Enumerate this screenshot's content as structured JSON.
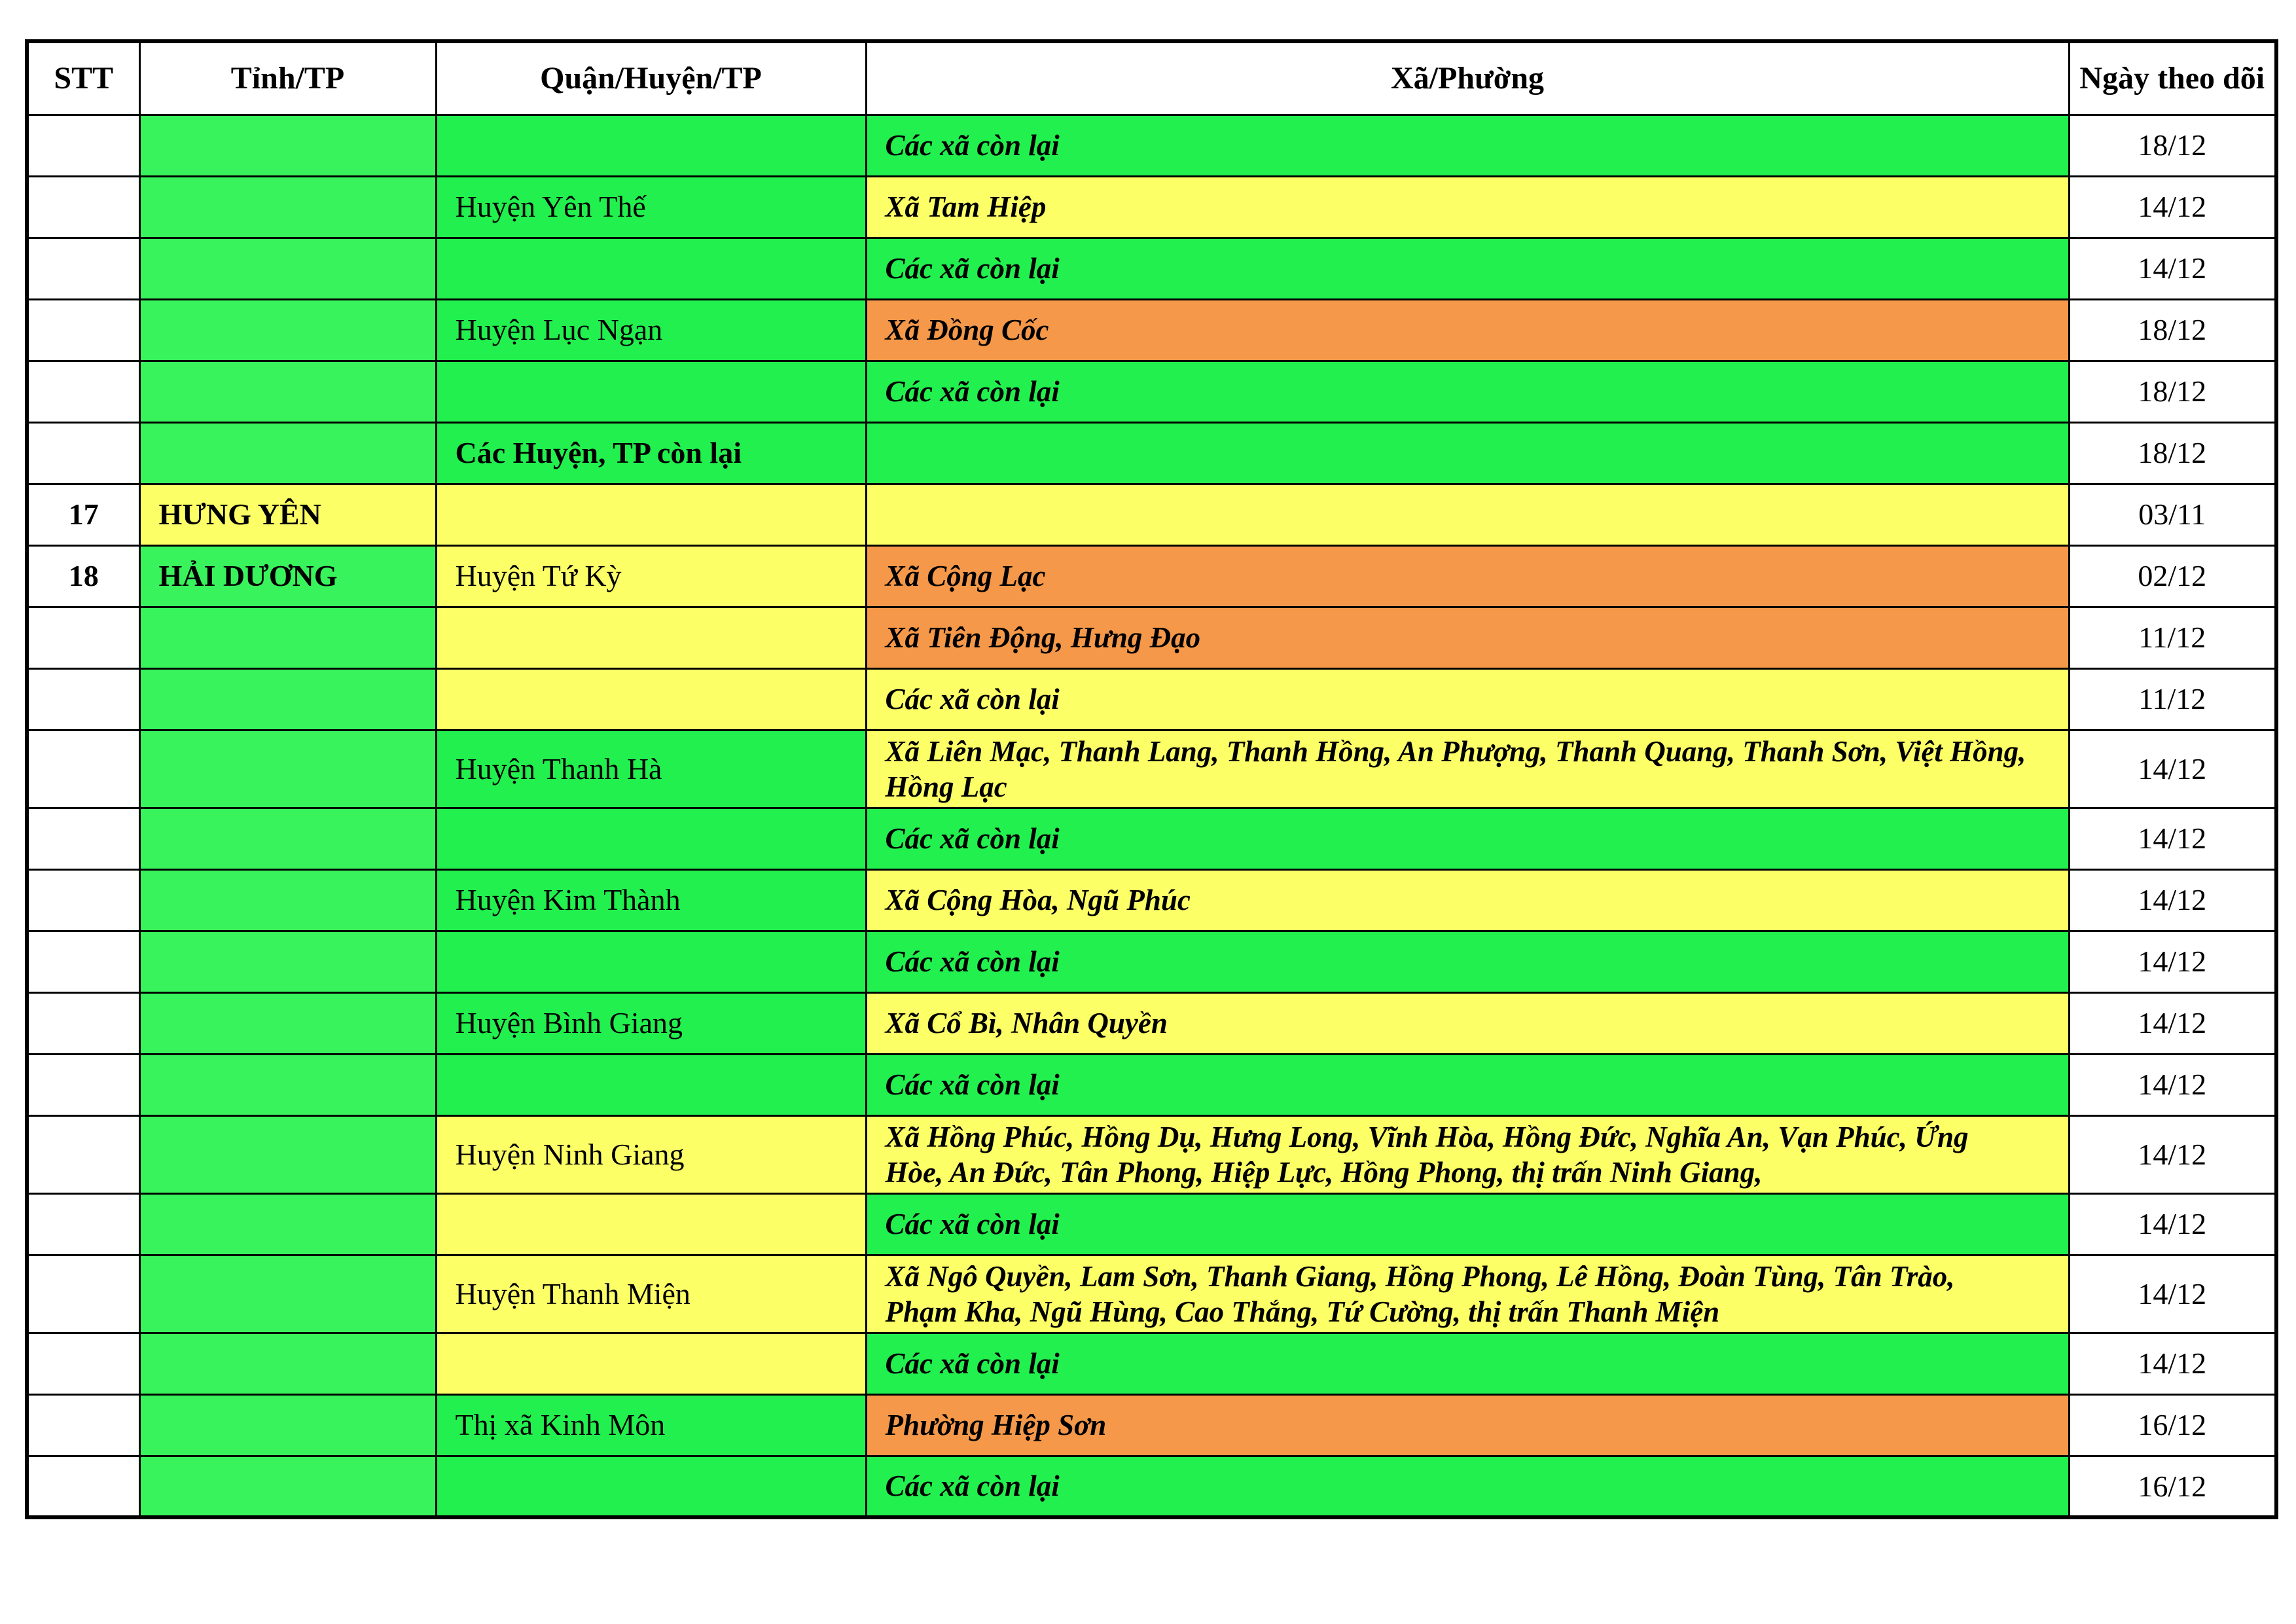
{
  "table": {
    "header": {
      "stt": "STT",
      "tinh": "Tỉnh/TP",
      "quan": "Quận/Huyện/TP",
      "xa": "Xã/Phường",
      "ngay": "Ngày theo dõi"
    },
    "colors": {
      "province_green": "#39F35C",
      "green": "#22F04E",
      "yellow": "#FDFF66",
      "orange": "#F59849",
      "white": "#FFFFFF"
    },
    "rows": [
      {
        "stt": "",
        "tinh": "",
        "tinh_bg": "province_green",
        "quan": "",
        "quan_bg": "green",
        "quan_bold": false,
        "xa": "Các xã còn lại",
        "xa_bg": "green",
        "ngay": "18/12",
        "tall": false
      },
      {
        "stt": "",
        "tinh": "",
        "tinh_bg": "province_green",
        "quan": "Huyện Yên Thế",
        "quan_bg": "green",
        "quan_bold": false,
        "xa": "Xã Tam Hiệp",
        "xa_bg": "yellow",
        "ngay": "14/12",
        "tall": false
      },
      {
        "stt": "",
        "tinh": "",
        "tinh_bg": "province_green",
        "quan": "",
        "quan_bg": "green",
        "quan_bold": false,
        "xa": "Các xã còn lại",
        "xa_bg": "green",
        "ngay": "14/12",
        "tall": false
      },
      {
        "stt": "",
        "tinh": "",
        "tinh_bg": "province_green",
        "quan": "Huyện Lục Ngạn",
        "quan_bg": "green",
        "quan_bold": false,
        "xa": "Xã Đồng Cốc",
        "xa_bg": "orange",
        "ngay": "18/12",
        "tall": false
      },
      {
        "stt": "",
        "tinh": "",
        "tinh_bg": "province_green",
        "quan": "",
        "quan_bg": "green",
        "quan_bold": false,
        "xa": "Các xã còn lại",
        "xa_bg": "green",
        "ngay": "18/12",
        "tall": false
      },
      {
        "stt": "",
        "tinh": "",
        "tinh_bg": "province_green",
        "quan": "Các Huyện, TP còn lại",
        "quan_bg": "green",
        "quan_bold": true,
        "xa": "",
        "xa_bg": "green",
        "ngay": "18/12",
        "tall": false
      },
      {
        "stt": "17",
        "tinh": "HƯNG YÊN",
        "tinh_bg": "yellow",
        "quan": "",
        "quan_bg": "yellow",
        "quan_bold": false,
        "xa": "",
        "xa_bg": "yellow",
        "ngay": "03/11",
        "tall": false
      },
      {
        "stt": "18",
        "tinh": "HẢI DƯƠNG",
        "tinh_bg": "province_green",
        "quan": "Huyện Tứ Kỳ",
        "quan_bg": "yellow",
        "quan_bold": false,
        "xa": "Xã Cộng Lạc",
        "xa_bg": "orange",
        "ngay": "02/12",
        "tall": false
      },
      {
        "stt": "",
        "tinh": "",
        "tinh_bg": "province_green",
        "quan": "",
        "quan_bg": "yellow",
        "quan_bold": false,
        "xa": "Xã Tiên Động, Hưng Đạo",
        "xa_bg": "orange",
        "ngay": "11/12",
        "tall": false
      },
      {
        "stt": "",
        "tinh": "",
        "tinh_bg": "province_green",
        "quan": "",
        "quan_bg": "yellow",
        "quan_bold": false,
        "xa": "Các xã còn lại",
        "xa_bg": "yellow",
        "ngay": "11/12",
        "tall": false
      },
      {
        "stt": "",
        "tinh": "",
        "tinh_bg": "province_green",
        "quan": "Huyện Thanh Hà",
        "quan_bg": "green",
        "quan_bold": false,
        "xa": "Xã Liên Mạc, Thanh Lang, Thanh Hồng, An Phượng, Thanh Quang, Thanh Sơn, Việt Hồng, Hồng Lạc",
        "xa_bg": "yellow",
        "ngay": "14/12",
        "tall": true
      },
      {
        "stt": "",
        "tinh": "",
        "tinh_bg": "province_green",
        "quan": "",
        "quan_bg": "green",
        "quan_bold": false,
        "xa": "Các xã còn lại",
        "xa_bg": "green",
        "ngay": "14/12",
        "tall": false
      },
      {
        "stt": "",
        "tinh": "",
        "tinh_bg": "province_green",
        "quan": "Huyện Kim Thành",
        "quan_bg": "green",
        "quan_bold": false,
        "xa": "Xã Cộng Hòa, Ngũ Phúc",
        "xa_bg": "yellow",
        "ngay": "14/12",
        "tall": false
      },
      {
        "stt": "",
        "tinh": "",
        "tinh_bg": "province_green",
        "quan": "",
        "quan_bg": "green",
        "quan_bold": false,
        "xa": "Các xã còn lại",
        "xa_bg": "green",
        "ngay": "14/12",
        "tall": false
      },
      {
        "stt": "",
        "tinh": "",
        "tinh_bg": "province_green",
        "quan": "Huyện Bình Giang",
        "quan_bg": "green",
        "quan_bold": false,
        "xa": "Xã Cổ Bì, Nhân Quyền",
        "xa_bg": "yellow",
        "ngay": "14/12",
        "tall": false
      },
      {
        "stt": "",
        "tinh": "",
        "tinh_bg": "province_green",
        "quan": "",
        "quan_bg": "green",
        "quan_bold": false,
        "xa": "Các xã còn lại",
        "xa_bg": "green",
        "ngay": "14/12",
        "tall": false
      },
      {
        "stt": "",
        "tinh": "",
        "tinh_bg": "province_green",
        "quan": "Huyện Ninh Giang",
        "quan_bg": "yellow",
        "quan_bold": false,
        "xa": "Xã Hồng Phúc, Hồng Dụ, Hưng Long, Vĩnh Hòa, Hồng Đức, Nghĩa An, Vạn Phúc, Ứng Hòe, An Đức, Tân Phong, Hiệp Lực, Hồng Phong, thị trấn Ninh Giang,",
        "xa_bg": "yellow",
        "ngay": "14/12",
        "tall": true
      },
      {
        "stt": "",
        "tinh": "",
        "tinh_bg": "province_green",
        "quan": "",
        "quan_bg": "yellow",
        "quan_bold": false,
        "xa": "Các xã còn lại",
        "xa_bg": "green",
        "ngay": "14/12",
        "tall": false
      },
      {
        "stt": "",
        "tinh": "",
        "tinh_bg": "province_green",
        "quan": "Huyện Thanh Miện",
        "quan_bg": "yellow",
        "quan_bold": false,
        "xa": "Xã Ngô Quyền, Lam Sơn, Thanh Giang, Hồng Phong, Lê Hồng, Đoàn Tùng, Tân Trào, Phạm Kha, Ngũ Hùng, Cao Thắng, Tứ Cường, thị trấn Thanh Miện",
        "xa_bg": "yellow",
        "ngay": "14/12",
        "tall": true
      },
      {
        "stt": "",
        "tinh": "",
        "tinh_bg": "province_green",
        "quan": "",
        "quan_bg": "yellow",
        "quan_bold": false,
        "xa": "Các xã còn lại",
        "xa_bg": "green",
        "ngay": "14/12",
        "tall": false
      },
      {
        "stt": "",
        "tinh": "",
        "tinh_bg": "province_green",
        "quan": "Thị xã Kinh Môn",
        "quan_bg": "green",
        "quan_bold": false,
        "xa": "Phường Hiệp Sơn",
        "xa_bg": "orange",
        "ngay": "16/12",
        "tall": false
      },
      {
        "stt": "",
        "tinh": "",
        "tinh_bg": "province_green",
        "quan": "",
        "quan_bg": "green",
        "quan_bold": false,
        "xa": "Các xã còn lại",
        "xa_bg": "green",
        "ngay": "16/12",
        "tall": false
      }
    ]
  }
}
